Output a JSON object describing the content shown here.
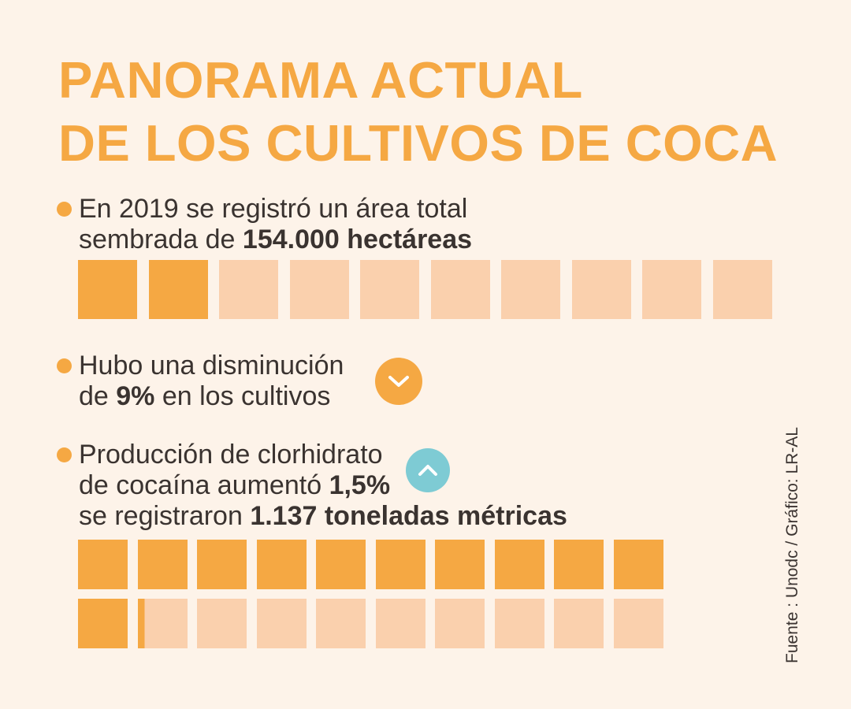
{
  "title": {
    "line1": "PANORAMA ACTUAL",
    "line2": "DE LOS CULTIVOS DE COCA"
  },
  "bullets": [
    {
      "line1": "En 2019 se registró un área total",
      "line2_prefix": "sembrada de ",
      "line2_bold": "154.000 hectáreas"
    },
    {
      "line1": "Hubo una disminución",
      "line2_prefix": "de ",
      "line2_bold": "9%",
      "line2_suffix": " en los cultivos",
      "badge_icon": "chevron-down-icon",
      "badge_color": "#f5a843"
    },
    {
      "line1": "Producción de clorhidrato",
      "line2_prefix": "de cocaína aumentó ",
      "line2_bold": "1,5%",
      "line3_prefix": "se registraron ",
      "line3_bold": "1.137 toneladas métricas",
      "badge_icon": "chevron-up-icon",
      "badge_color": "#7ecbd4"
    }
  ],
  "source": "Fuente : Unodc / Gráfico: LR-AL",
  "colors": {
    "accent": "#f5a843",
    "light": "#fad0ad",
    "background": "#fdf3e9",
    "text": "#3a3330"
  },
  "waffles": {
    "hectareas": {
      "total": 10,
      "filled": 2
    },
    "toneladas": {
      "total": 20,
      "filled": 11.137
    }
  }
}
